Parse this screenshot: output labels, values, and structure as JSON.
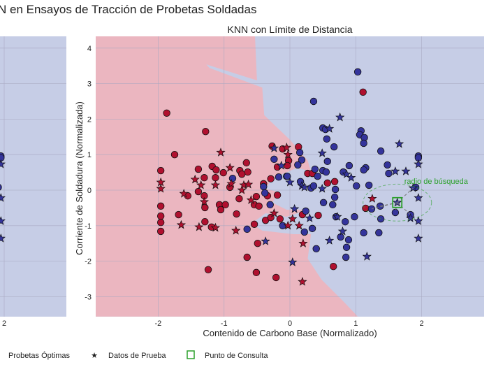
{
  "figure_title": "N en Ensayos de Tracción de Probetas Soldadas",
  "legend": {
    "items": [
      {
        "label": "Probetas Óptimas",
        "marker": "none"
      },
      {
        "label": "Datos de Prueba",
        "marker": "star",
        "color": "#555555"
      },
      {
        "label": "Punto de Consulta",
        "marker": "square-outline",
        "color": "#2ca02c"
      }
    ]
  },
  "colors": {
    "region_red": "#ebb6c0",
    "region_blue": "#c6cde6",
    "point_red": "#b0102f",
    "point_blue": "#34349b",
    "query": "#2ca02c",
    "grid": "#a9a9c2"
  },
  "chart_data": [
    {
      "type": "scatter",
      "panel": "left (partially visible)",
      "xticks": [
        "2"
      ],
      "xlim": [
        1.93,
        2.95
      ],
      "ylim": [
        -3.56,
        4.33
      ],
      "note_visible_points": "same data as right panel, only x > 1.9 visible"
    },
    {
      "type": "scatter",
      "title": "KNN con Límite de Distancia",
      "xlabel": "Contenido de Carbono Base (Normalizado)",
      "ylabel": "Corriente de Soldadura (Normalizada)",
      "xlim": [
        -2.95,
        2.95
      ],
      "ylim": [
        -3.56,
        4.33
      ],
      "xticks": [
        "-2",
        "-1",
        "0",
        "1",
        "2"
      ],
      "xtick_values": [
        -2,
        -1,
        0,
        1,
        2
      ],
      "yticks": [
        "4",
        "3",
        "2",
        "1",
        "0",
        "-1",
        "-2",
        "-3"
      ],
      "ytick_values": [
        4,
        3,
        2,
        1,
        0,
        -1,
        -2,
        -3
      ],
      "grid": true,
      "legend_placement": "bottom, below figure",
      "decision_region_red": [
        [
          -2.95,
          4.33
        ],
        [
          -0.53,
          4.33
        ],
        [
          -0.5,
          3.09
        ],
        [
          -1.27,
          3.54
        ],
        [
          -1.22,
          3.44
        ],
        [
          -0.42,
          2.89
        ],
        [
          -0.39,
          2.11
        ],
        [
          0.0,
          1.42
        ],
        [
          0.27,
          0.83
        ],
        [
          0.32,
          0.53
        ],
        [
          0.11,
          0.63
        ],
        [
          -0.27,
          0.33
        ],
        [
          -0.37,
          0.04
        ],
        [
          -0.16,
          -0.06
        ],
        [
          -0.27,
          -0.35
        ],
        [
          -0.05,
          -0.55
        ],
        [
          0.27,
          -0.55
        ],
        [
          -0.05,
          -0.75
        ],
        [
          -0.37,
          -0.65
        ],
        [
          -0.58,
          -0.94
        ],
        [
          -0.42,
          -1.14
        ],
        [
          0.05,
          -1.24
        ],
        [
          0.32,
          -1.24
        ],
        [
          0.27,
          -1.93
        ],
        [
          0.48,
          -2.52
        ],
        [
          0.8,
          -3.11
        ],
        [
          1.03,
          -3.56
        ],
        [
          -2.95,
          -3.56
        ]
      ],
      "train_red": [
        [
          -1.87,
          2.17
        ],
        [
          -1.28,
          1.65
        ],
        [
          -1.75,
          1.0
        ],
        [
          -1.96,
          0.55
        ],
        [
          -1.39,
          0.59
        ],
        [
          -1.18,
          0.67
        ],
        [
          -1.12,
          0.57
        ],
        [
          -1.01,
          0.49
        ],
        [
          -1.3,
          0.35
        ],
        [
          -1.13,
          0.35
        ],
        [
          -0.66,
          0.77
        ],
        [
          -0.76,
          0.55
        ],
        [
          -0.64,
          0.51
        ],
        [
          -0.73,
          0.45
        ],
        [
          -0.91,
          0.08
        ],
        [
          -1.39,
          -0.04
        ],
        [
          -1.55,
          -0.16
        ],
        [
          -1.3,
          -0.16
        ],
        [
          -1.29,
          -0.49
        ],
        [
          -1.07,
          -0.41
        ],
        [
          -0.98,
          -0.41
        ],
        [
          -1.05,
          -0.55
        ],
        [
          -0.77,
          -0.24
        ],
        [
          -1.96,
          -0.45
        ],
        [
          -1.96,
          -0.73
        ],
        [
          -1.96,
          -0.91
        ],
        [
          -1.96,
          -1.16
        ],
        [
          -1.69,
          -0.69
        ],
        [
          -1.29,
          -0.89
        ],
        [
          -1.19,
          -1.04
        ],
        [
          -0.81,
          -0.67
        ],
        [
          -0.54,
          -0.96
        ],
        [
          -0.51,
          -0.18
        ],
        [
          -0.54,
          -0.41
        ],
        [
          -0.47,
          -0.45
        ],
        [
          -0.37,
          -0.85
        ],
        [
          -0.29,
          -0.77
        ],
        [
          -0.15,
          -0.81
        ],
        [
          -0.19,
          -0.14
        ],
        [
          -0.34,
          -0.16
        ],
        [
          -0.4,
          0.18
        ],
        [
          -0.29,
          0.32
        ],
        [
          -0.49,
          -1.5
        ],
        [
          -0.65,
          -1.89
        ],
        [
          -1.24,
          -2.24
        ],
        [
          -0.51,
          -2.32
        ],
        [
          -0.21,
          -2.46
        ],
        [
          -0.27,
          1.24
        ],
        [
          -0.11,
          1.16
        ],
        [
          -0.02,
          0.83
        ],
        [
          -0.04,
          0.69
        ],
        [
          -0.19,
          0.65
        ],
        [
          1.11,
          2.76
        ],
        [
          0.13,
          1.22
        ],
        [
          0.27,
          0.47
        ],
        [
          0.34,
          0.47
        ],
        [
          0.57,
          0.2
        ],
        [
          0.68,
          0.24
        ],
        [
          1.15,
          -0.51
        ],
        [
          0.19,
          -0.69
        ],
        [
          0.43,
          -0.71
        ],
        [
          0.66,
          -2.15
        ]
      ],
      "train_blue": [
        [
          1.03,
          3.33
        ],
        [
          0.36,
          2.5
        ],
        [
          0.5,
          1.75
        ],
        [
          0.54,
          1.71
        ],
        [
          1.08,
          1.67
        ],
        [
          1.06,
          1.56
        ],
        [
          1.13,
          1.48
        ],
        [
          1.12,
          1.32
        ],
        [
          0.56,
          1.44
        ],
        [
          0.67,
          1.22
        ],
        [
          1.38,
          1.1
        ],
        [
          1.95,
          0.96
        ],
        [
          1.95,
          0.91
        ],
        [
          0.15,
          1.06
        ],
        [
          0.18,
          0.85
        ],
        [
          0.57,
          0.81
        ],
        [
          0.12,
          0.71
        ],
        [
          0.9,
          0.69
        ],
        [
          1.15,
          0.63
        ],
        [
          1.12,
          0.57
        ],
        [
          1.48,
          0.71
        ],
        [
          1.5,
          0.47
        ],
        [
          0.38,
          0.59
        ],
        [
          0.5,
          0.55
        ],
        [
          0.55,
          0.51
        ],
        [
          0.81,
          0.51
        ],
        [
          0.42,
          0.39
        ],
        [
          1.01,
          0.12
        ],
        [
          1.2,
          0.14
        ],
        [
          1.91,
          0.08
        ],
        [
          0.16,
          0.24
        ],
        [
          0.32,
          0.06
        ],
        [
          0.36,
          0.12
        ],
        [
          0.69,
          0.02
        ],
        [
          0.68,
          -0.2
        ],
        [
          0.51,
          -0.35
        ],
        [
          0.65,
          -0.41
        ],
        [
          -0.05,
          0.39
        ],
        [
          1.37,
          -0.45
        ],
        [
          1.24,
          -0.53
        ],
        [
          1.6,
          -0.63
        ],
        [
          1.83,
          -0.69
        ],
        [
          1.38,
          -0.81
        ],
        [
          0.24,
          -0.59
        ],
        [
          0.7,
          -0.75
        ],
        [
          0.98,
          -0.75
        ],
        [
          0.84,
          -0.89
        ],
        [
          -0.11,
          -1.0
        ],
        [
          0.22,
          -1.18
        ],
        [
          0.34,
          -1.08
        ],
        [
          1.12,
          -1.2
        ],
        [
          1.35,
          -1.2
        ],
        [
          0.77,
          -1.32
        ],
        [
          0.89,
          -1.4
        ],
        [
          0.86,
          -1.61
        ],
        [
          0.4,
          -1.65
        ],
        [
          0.85,
          -1.89
        ],
        [
          -0.87,
          0.33
        ],
        [
          -0.4,
          0.1
        ],
        [
          -0.38,
          -0.08
        ],
        [
          -0.3,
          -0.41
        ],
        [
          -0.24,
          0.87
        ],
        [
          -0.17,
          0.37
        ],
        [
          -0.04,
          0.39
        ],
        [
          -0.65,
          -1.1
        ]
      ],
      "test_red": [
        [
          -1.05,
          1.06
        ],
        [
          -1.96,
          0.22
        ],
        [
          -1.96,
          0.04
        ],
        [
          -1.44,
          0.3
        ],
        [
          -1.35,
          0.14
        ],
        [
          -1.13,
          0.14
        ],
        [
          -0.91,
          0.63
        ],
        [
          -0.7,
          0.14
        ],
        [
          -0.63,
          0.16
        ],
        [
          -0.73,
          0.0
        ],
        [
          -0.59,
          -0.28
        ],
        [
          -1.61,
          -0.1
        ],
        [
          -1.3,
          -0.33
        ],
        [
          -1.65,
          -0.98
        ],
        [
          -1.38,
          -1.04
        ],
        [
          -1.13,
          -1.06
        ],
        [
          -0.82,
          -1.14
        ],
        [
          -0.05,
          1.2
        ],
        [
          -0.03,
          1.0
        ],
        [
          -0.24,
          -0.65
        ],
        [
          -0.03,
          -1.0
        ],
        [
          -0.89,
          0.18
        ],
        [
          1.25,
          -0.24
        ],
        [
          0.04,
          -0.81
        ],
        [
          0.14,
          -1.0
        ],
        [
          0.2,
          -1.5
        ],
        [
          0.19,
          -2.58
        ]
      ],
      "test_blue": [
        [
          0.76,
          2.05
        ],
        [
          0.6,
          1.73
        ],
        [
          1.66,
          1.3
        ],
        [
          0.49,
          1.04
        ],
        [
          1.95,
          0.73
        ],
        [
          1.6,
          0.53
        ],
        [
          1.76,
          0.53
        ],
        [
          0.86,
          0.45
        ],
        [
          0.93,
          0.35
        ],
        [
          0.0,
          0.22
        ],
        [
          0.18,
          0.12
        ],
        [
          0.22,
          0.08
        ],
        [
          0.49,
          0.04
        ],
        [
          1.87,
          0.06
        ],
        [
          1.95,
          -0.22
        ],
        [
          1.63,
          -0.35
        ],
        [
          1.83,
          -0.79
        ],
        [
          1.95,
          -0.87
        ],
        [
          0.07,
          -0.53
        ],
        [
          0.3,
          -0.79
        ],
        [
          0.72,
          -0.75
        ],
        [
          0.8,
          -1.16
        ],
        [
          0.6,
          -1.42
        ],
        [
          1.95,
          -1.36
        ],
        [
          1.17,
          -1.87
        ],
        [
          0.04,
          -2.03
        ],
        [
          -0.37,
          -1.44
        ],
        [
          -0.24,
          1.18
        ],
        [
          -0.13,
          0.69
        ]
      ],
      "query_point": [
        1.63,
        -0.35
      ],
      "search_radius": 0.52,
      "radius_label": "radio de búsqueda",
      "neighbors": [
        [
          1.37,
          -0.45
        ],
        [
          1.24,
          -0.53
        ],
        [
          1.6,
          -0.63
        ],
        [
          1.83,
          -0.69
        ],
        [
          1.87,
          0.06
        ]
      ]
    }
  ]
}
